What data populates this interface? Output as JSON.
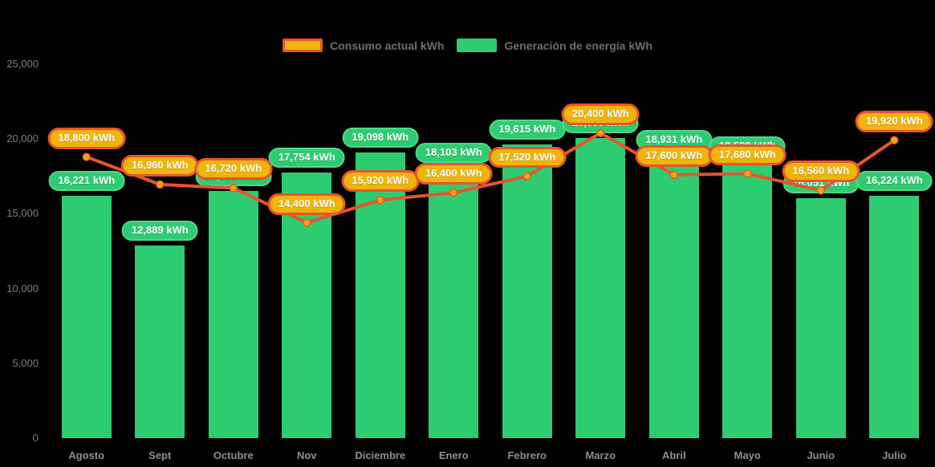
{
  "legend": {
    "items": [
      {
        "label": "Consumo actual kWh"
      },
      {
        "label": "Generación de energía kWh"
      }
    ]
  },
  "colors": {
    "background": "#000000",
    "bar_green": "#2ecc71",
    "line_red": "#e8532d",
    "pill_yellow": "#f1b40d",
    "pill_orange_border": "#e8542d",
    "axis_text": "#7d7d7d",
    "month_text": "#8f8f8f"
  },
  "y_axis": {
    "tick_labels": [
      "25,000",
      "20,000",
      "15,000",
      "10,000",
      "5,000",
      "0"
    ],
    "tick_values": [
      25000,
      20000,
      15000,
      10000,
      5000,
      0
    ]
  },
  "chart_data": {
    "type": "combo-bar-line",
    "categories": [
      "Agosto",
      "Sept",
      "Octubre",
      "Nov",
      "Diciembre",
      "Enero",
      "Febrero",
      "Marzo",
      "Abril",
      "Mayo",
      "Junio",
      "Julio"
    ],
    "series": [
      {
        "name": "Consumo actual kWh",
        "kind": "line",
        "color": "#e8532d",
        "values": [
          18800,
          16960,
          16720,
          14400,
          15920,
          16400,
          17520,
          20400,
          17600,
          17680,
          16560,
          19920
        ],
        "labels": [
          "18,800 kWh",
          "16,960 kWh",
          "16,720 kWh",
          "14,400 kWh",
          "15,920 kWh",
          "16,400 kWh",
          "17,520 kWh",
          "20,400 kWh",
          "17,600 kWh",
          "17,680 kWh",
          "16,560 kWh",
          "19,920 kWh"
        ]
      },
      {
        "name": "Generación de energía kWh",
        "kind": "bar",
        "color": "#2ecc71",
        "values": [
          16221,
          12889,
          16500,
          17754,
          19098,
          18103,
          19615,
          20050,
          18931,
          18520,
          16051,
          16224
        ],
        "labels": [
          "16,221 kWh",
          "12,889 kWh",
          "16,500 kWh",
          "17,754 kWh",
          "19,098 kWh",
          "18,103 kWh",
          "19,615 kWh",
          "20,050 kWh",
          "18,931 kWh",
          "18,520 kWh",
          "16,051 kWh",
          "16,224 kWh"
        ],
        "label_covered_by_line_label": [
          false,
          false,
          true,
          false,
          false,
          false,
          false,
          true,
          false,
          false,
          true,
          false
        ]
      }
    ],
    "ylim": [
      0,
      25000
    ],
    "grid": false,
    "legend_position": "top"
  }
}
